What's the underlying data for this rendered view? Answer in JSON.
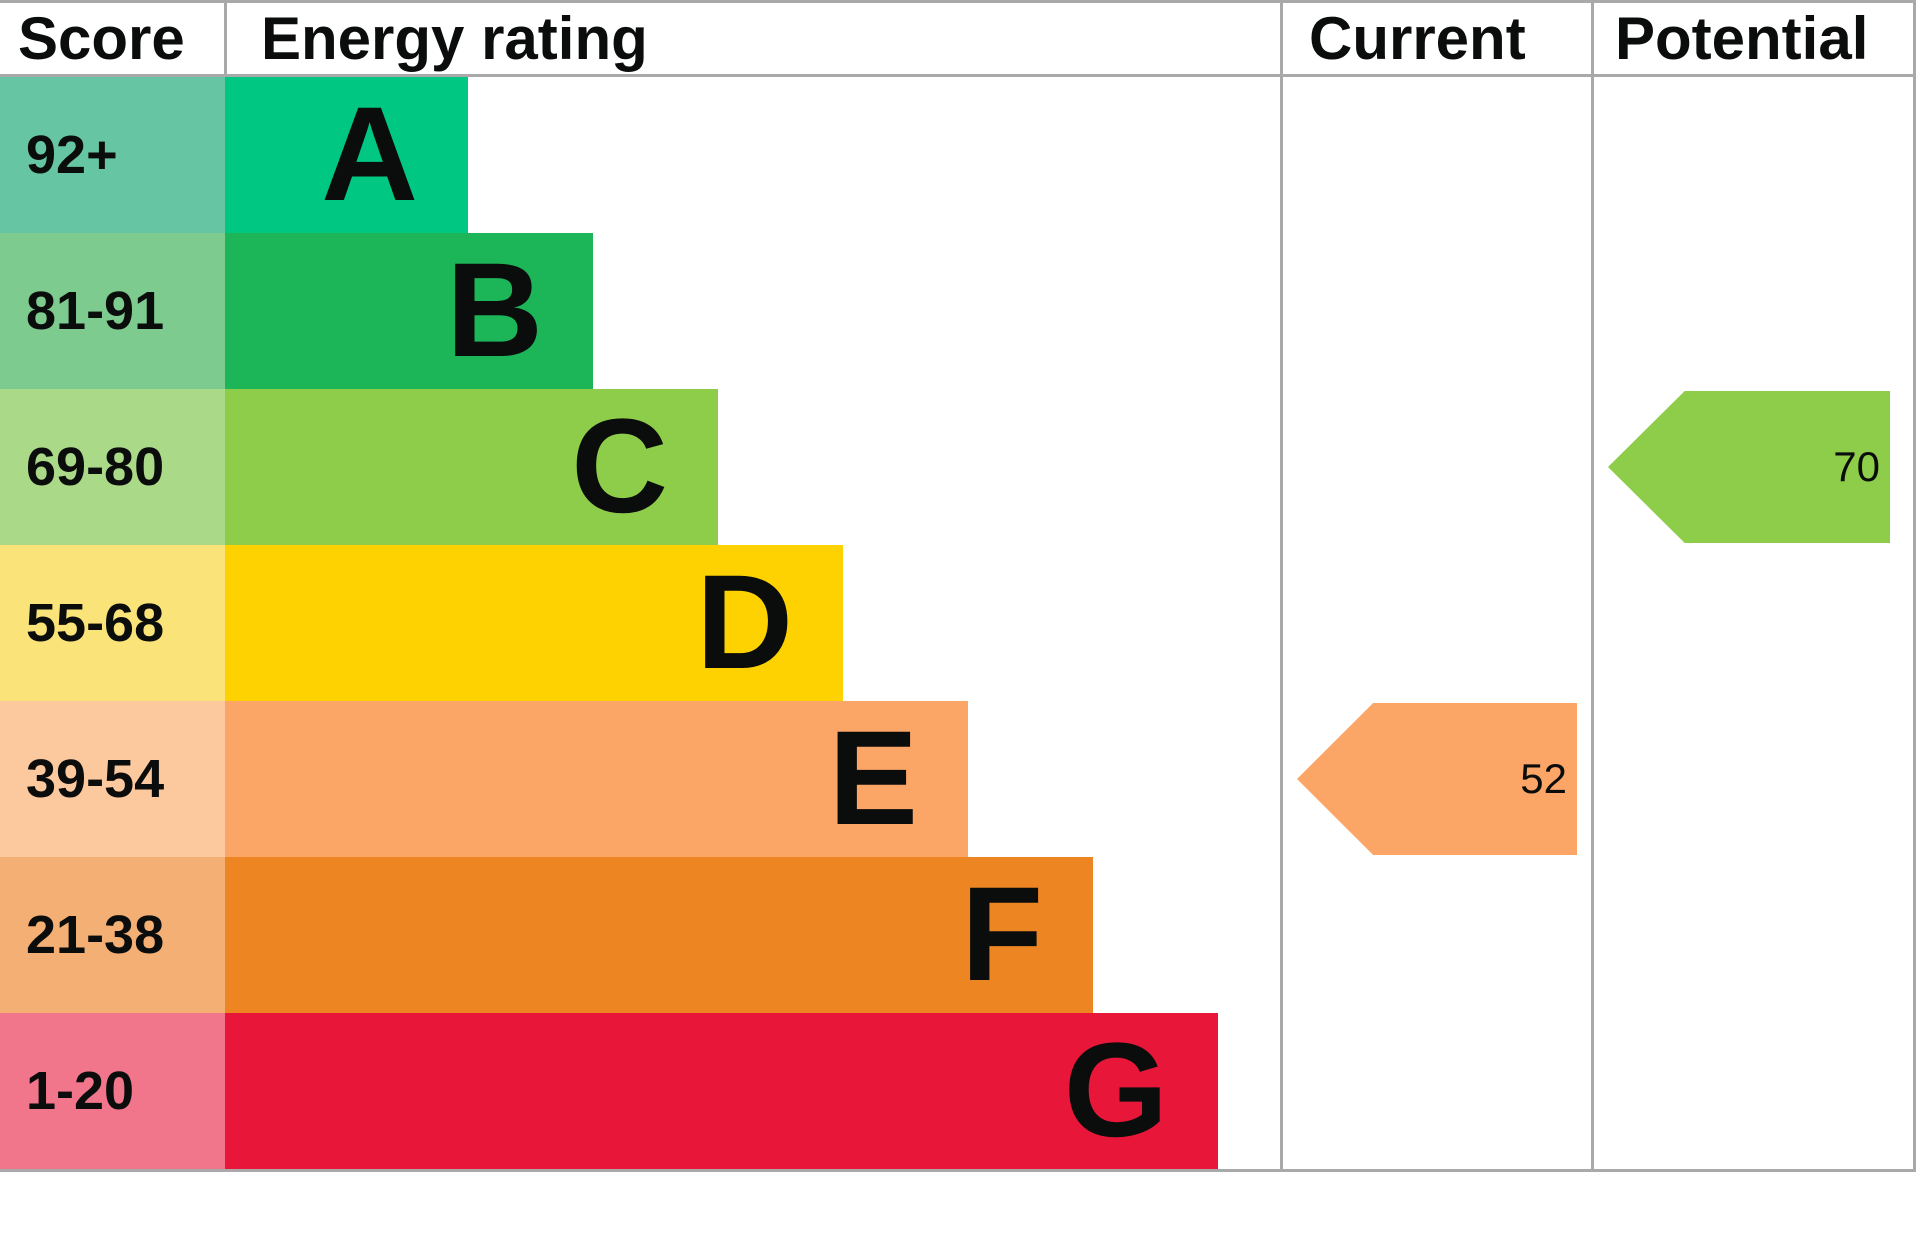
{
  "header": {
    "score": "Score",
    "energy_rating": "Energy rating",
    "current": "Current",
    "potential": "Potential"
  },
  "colors": {
    "border": "#a9a9a9",
    "text": "#0b0c0c"
  },
  "chart_data": {
    "type": "bar",
    "subtype": "epc-energy-rating-bands",
    "columns": [
      "Score",
      "Energy rating",
      "Current",
      "Potential"
    ],
    "bands": [
      {
        "letter": "A",
        "score_range": "92+",
        "bar_color": "#00c781",
        "score_bg": "#66c5a2"
      },
      {
        "letter": "B",
        "score_range": "81-91",
        "bar_color": "#1cb558",
        "score_bg": "#7ecb90"
      },
      {
        "letter": "C",
        "score_range": "69-80",
        "bar_color": "#8ecd49",
        "score_bg": "#aad988"
      },
      {
        "letter": "D",
        "score_range": "55-68",
        "bar_color": "#fdd200",
        "score_bg": "#fae378"
      },
      {
        "letter": "E",
        "score_range": "39-54",
        "bar_color": "#fba567",
        "score_bg": "#fcc99e"
      },
      {
        "letter": "F",
        "score_range": "21-38",
        "bar_color": "#ee8523",
        "score_bg": "#f3af74"
      },
      {
        "letter": "G",
        "score_range": "1-20",
        "bar_color": "#e8173a",
        "score_bg": "#f1758b"
      }
    ],
    "current": {
      "value": "52",
      "band": "E",
      "arrow_color": "#fba567"
    },
    "potential": {
      "value": "70",
      "band": "C",
      "arrow_color": "#8ecd49"
    }
  }
}
